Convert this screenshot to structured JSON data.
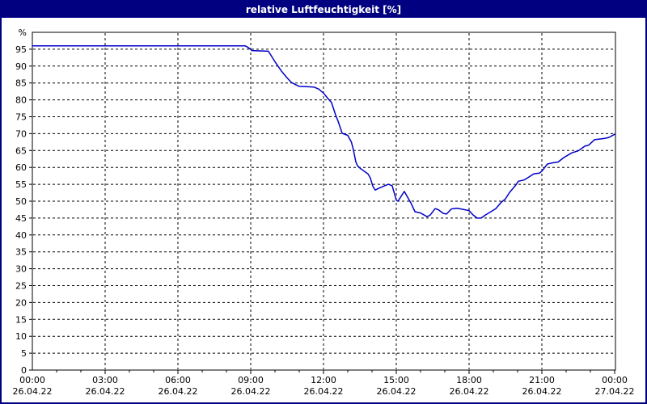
{
  "window": {
    "title": "relative Luftfeuchtigkeit [%]"
  },
  "colors": {
    "titlebar_bg": "#000080",
    "window_border": "#000080",
    "title_text": "#ffffff",
    "plot_bg": "#ffffff",
    "plot_border": "#000000",
    "grid": "#000000",
    "line": "#0000c8",
    "tick_text": "#000000"
  },
  "chart_data": {
    "type": "line",
    "title": "relative Luftfeuchtigkeit [%]",
    "xlabel": "",
    "ylabel": "%",
    "ylim": [
      0,
      100
    ],
    "x_range_hours": [
      0,
      24
    ],
    "legend": "none",
    "grid": {
      "style": "dashed",
      "color": "#000000",
      "y_step": 5,
      "x_step_hours": 3
    },
    "y_axis": {
      "unit_label": "%",
      "ticks": [
        0,
        5,
        10,
        15,
        20,
        25,
        30,
        35,
        40,
        45,
        50,
        55,
        60,
        65,
        70,
        75,
        80,
        85,
        90,
        95
      ]
    },
    "x_axis": {
      "minor_tick_hours": 1,
      "ticks": [
        {
          "hour": 0,
          "time": "00:00",
          "date": "26.04.22"
        },
        {
          "hour": 3,
          "time": "03:00",
          "date": "26.04.22"
        },
        {
          "hour": 6,
          "time": "06:00",
          "date": "26.04.22"
        },
        {
          "hour": 9,
          "time": "09:00",
          "date": "26.04.22"
        },
        {
          "hour": 12,
          "time": "12:00",
          "date": "26.04.22"
        },
        {
          "hour": 15,
          "time": "15:00",
          "date": "26.04.22"
        },
        {
          "hour": 18,
          "time": "18:00",
          "date": "26.04.22"
        },
        {
          "hour": 21,
          "time": "21:00",
          "date": "26.04.22"
        },
        {
          "hour": 24,
          "time": "00:00",
          "date": "27.04.22"
        }
      ]
    },
    "series": [
      {
        "name": "relative Luftfeuchtigkeit",
        "unit": "%",
        "color": "#0000c8",
        "points": [
          [
            0.0,
            96.0
          ],
          [
            8.77,
            96.0
          ],
          [
            8.9,
            95.5
          ],
          [
            9.05,
            94.6
          ],
          [
            9.73,
            94.4
          ],
          [
            10.0,
            91.3
          ],
          [
            10.27,
            88.5
          ],
          [
            10.5,
            86.5
          ],
          [
            10.67,
            85.2
          ],
          [
            10.83,
            84.6
          ],
          [
            11.0,
            84.0
          ],
          [
            11.6,
            83.8
          ],
          [
            11.8,
            83.2
          ],
          [
            12.0,
            82.0
          ],
          [
            12.17,
            80.5
          ],
          [
            12.33,
            79.2
          ],
          [
            12.5,
            75.5
          ],
          [
            12.6,
            73.7
          ],
          [
            12.77,
            70.1
          ],
          [
            13.0,
            69.5
          ],
          [
            13.15,
            67.5
          ],
          [
            13.23,
            65.3
          ],
          [
            13.33,
            61.7
          ],
          [
            13.4,
            60.5
          ],
          [
            13.5,
            59.8
          ],
          [
            13.67,
            58.9
          ],
          [
            13.83,
            58.1
          ],
          [
            13.93,
            56.9
          ],
          [
            14.03,
            54.5
          ],
          [
            14.13,
            53.3
          ],
          [
            14.33,
            54.0
          ],
          [
            14.67,
            55.0
          ],
          [
            14.83,
            54.6
          ],
          [
            15.0,
            50.3
          ],
          [
            15.07,
            50.0
          ],
          [
            15.33,
            52.9
          ],
          [
            15.6,
            49.5
          ],
          [
            15.77,
            46.9
          ],
          [
            16.0,
            46.5
          ],
          [
            16.27,
            45.4
          ],
          [
            16.4,
            45.9
          ],
          [
            16.6,
            47.8
          ],
          [
            16.73,
            47.5
          ],
          [
            16.93,
            46.4
          ],
          [
            17.07,
            46.2
          ],
          [
            17.27,
            47.7
          ],
          [
            17.5,
            47.9
          ],
          [
            17.73,
            47.6
          ],
          [
            18.0,
            47.2
          ],
          [
            18.17,
            45.9
          ],
          [
            18.33,
            45.0
          ],
          [
            18.5,
            45.0
          ],
          [
            18.67,
            45.9
          ],
          [
            18.9,
            46.9
          ],
          [
            19.1,
            47.8
          ],
          [
            19.33,
            49.7
          ],
          [
            19.5,
            50.7
          ],
          [
            19.67,
            52.6
          ],
          [
            19.93,
            54.8
          ],
          [
            20.03,
            55.9
          ],
          [
            20.27,
            56.3
          ],
          [
            20.43,
            57.0
          ],
          [
            20.67,
            58.1
          ],
          [
            20.9,
            58.3
          ],
          [
            21.0,
            58.9
          ],
          [
            21.23,
            61.0
          ],
          [
            21.4,
            61.3
          ],
          [
            21.67,
            61.6
          ],
          [
            21.9,
            62.9
          ],
          [
            22.23,
            64.3
          ],
          [
            22.5,
            64.9
          ],
          [
            22.77,
            66.3
          ],
          [
            22.93,
            66.6
          ],
          [
            23.17,
            68.2
          ],
          [
            23.6,
            68.6
          ],
          [
            23.77,
            68.9
          ],
          [
            24.0,
            69.8
          ]
        ]
      }
    ]
  }
}
